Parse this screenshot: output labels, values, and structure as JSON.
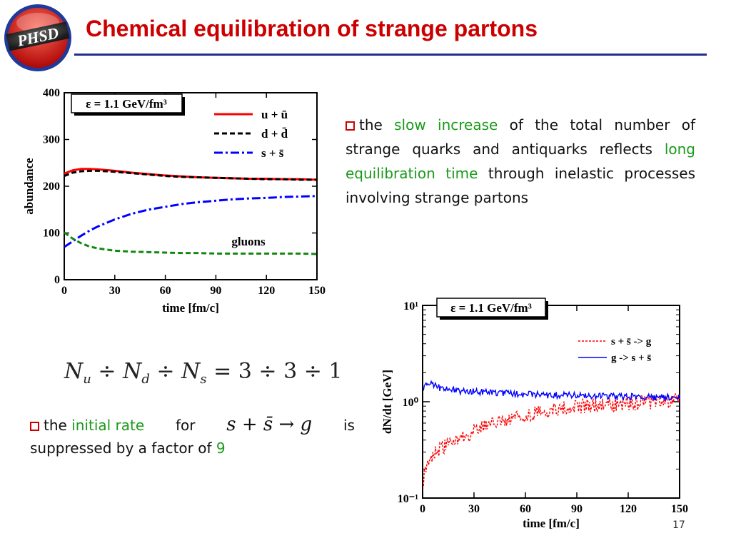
{
  "logo": {
    "text": "PHSD"
  },
  "title": "Chemical equilibration of strange partons",
  "paragraph1": {
    "pre": "the ",
    "hl1": "slow increase",
    "mid": " of the total number of strange quarks and antiquarks reflects ",
    "hl2": "long equilibration time",
    "post": " through inelastic processes involving strange partons"
  },
  "formula": {
    "text": "N_u ÷ N_d ÷ N_s = 3 ÷ 3 ÷ 1"
  },
  "paragraph2": {
    "pre": "the ",
    "hl1": "initial rate",
    "for": "for",
    "reaction": "s + s̄ → g",
    "is": "is",
    "line2_pre": "suppressed by a factor of ",
    "factor": "9"
  },
  "page_number": "17",
  "colors": {
    "title": "#cc0000",
    "rule": "#1f2f8a",
    "highlight": "#1a9a1a",
    "red": "#ff0000",
    "blue": "#0000ff",
    "black": "#000000",
    "green": "#118811"
  },
  "chart_data": [
    {
      "type": "line",
      "annotation": "ε = 1.1 GeV/fm³",
      "label_inside": "gluons",
      "xlabel": "time [fm/c]",
      "ylabel": "abundance",
      "xlim": [
        0,
        150
      ],
      "ylim": [
        0,
        400
      ],
      "xticks": [
        0,
        30,
        60,
        90,
        120,
        150
      ],
      "yticks": [
        0,
        100,
        200,
        300,
        400
      ],
      "legend_position": "top-right",
      "x": [
        0,
        5,
        10,
        15,
        20,
        30,
        40,
        50,
        60,
        70,
        80,
        90,
        100,
        110,
        120,
        130,
        140,
        150
      ],
      "series": [
        {
          "name": "u + ū",
          "color": "#ff0000",
          "style": "solid",
          "values": [
            227,
            234,
            237,
            237,
            236,
            233,
            229,
            226,
            223,
            221,
            219,
            218,
            217,
            216,
            216,
            215,
            215,
            214
          ]
        },
        {
          "name": "d + d̄",
          "color": "#000000",
          "style": "dashed",
          "values": [
            222,
            229,
            232,
            233,
            233,
            231,
            228,
            225,
            222,
            220,
            219,
            218,
            217,
            216,
            215,
            215,
            214,
            214
          ]
        },
        {
          "name": "s + s̄",
          "color": "#0000ff",
          "style": "dashdot",
          "values": [
            70,
            82,
            94,
            105,
            114,
            129,
            141,
            150,
            156,
            162,
            166,
            169,
            172,
            174,
            175,
            177,
            178,
            179
          ]
        },
        {
          "name": "gluons",
          "color": "#118811",
          "style": "dashed",
          "values": [
            101,
            88,
            78,
            71,
            67,
            62,
            60,
            59,
            58,
            57,
            57,
            56,
            56,
            56,
            56,
            56,
            56,
            55
          ]
        }
      ]
    },
    {
      "type": "line",
      "annotation": "ε = 1.1 GeV/fm³",
      "xlabel": "time [fm/c]",
      "ylabel": "dN/dt [GeV]",
      "xlim": [
        0,
        150
      ],
      "ylim": [
        0.1,
        10
      ],
      "yscale": "log",
      "xticks": [
        0,
        30,
        60,
        90,
        120,
        150
      ],
      "ytick_labels": [
        "10⁻¹",
        "10⁰",
        "10¹"
      ],
      "legend_position": "top-right",
      "x": [
        0,
        2,
        5,
        10,
        15,
        20,
        25,
        30,
        40,
        50,
        60,
        70,
        80,
        90,
        100,
        110,
        120,
        130,
        140,
        150
      ],
      "series": [
        {
          "name": "s + s̄ -> g",
          "color": "#ff0000",
          "style": "dashed",
          "values": [
            0.12,
            0.22,
            0.28,
            0.32,
            0.36,
            0.4,
            0.45,
            0.5,
            0.58,
            0.66,
            0.74,
            0.8,
            0.86,
            0.9,
            0.93,
            0.96,
            0.98,
            1.0,
            1.02,
            1.04
          ]
        },
        {
          "name": "g -> s + s̄",
          "color": "#0000ff",
          "style": "solid",
          "values": [
            1.3,
            1.55,
            1.55,
            1.4,
            1.35,
            1.3,
            1.28,
            1.27,
            1.25,
            1.22,
            1.2,
            1.18,
            1.17,
            1.16,
            1.15,
            1.14,
            1.13,
            1.13,
            1.12,
            1.12
          ]
        }
      ]
    }
  ]
}
